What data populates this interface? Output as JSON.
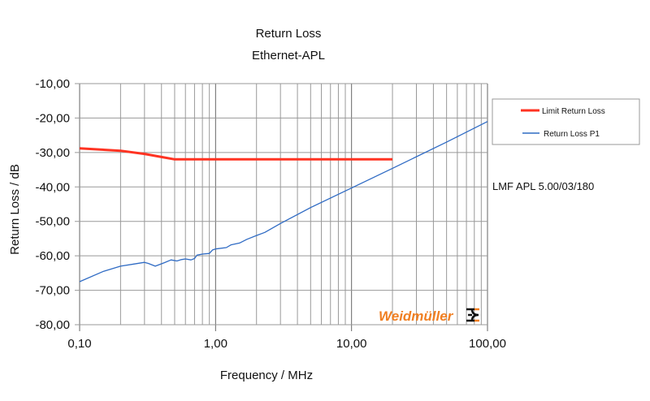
{
  "chart_data": {
    "type": "line",
    "title": "Return Loss",
    "subtitle": "Ethernet-APL",
    "xlabel": "Frequency / MHz",
    "ylabel": "Return Loss / dB",
    "xscale": "log",
    "xlim": [
      0.1,
      100
    ],
    "ylim": [
      -80,
      -10
    ],
    "x_ticks": [
      {
        "v": 0.1,
        "label": "0,10"
      },
      {
        "v": 1,
        "label": "1,00"
      },
      {
        "v": 10,
        "label": "10,00"
      },
      {
        "v": 100,
        "label": "100,00"
      }
    ],
    "y_ticks": [
      {
        "v": -10,
        "label": "-10,00"
      },
      {
        "v": -20,
        "label": "-20,00"
      },
      {
        "v": -30,
        "label": "-30,00"
      },
      {
        "v": -40,
        "label": "-40,00"
      },
      {
        "v": -50,
        "label": "-50,00"
      },
      {
        "v": -60,
        "label": "-60,00"
      },
      {
        "v": -70,
        "label": "-70,00"
      },
      {
        "v": -80,
        "label": "-80,00"
      }
    ],
    "grid": true,
    "legend_position": "right",
    "series": [
      {
        "name": "Limit Return Loss",
        "color": "#ff3322",
        "x": [
          0.1,
          0.2,
          0.3,
          0.4,
          0.5,
          0.55,
          20
        ],
        "y": [
          -28.8,
          -29.5,
          -30.4,
          -31.3,
          -32,
          -32,
          -32
        ]
      },
      {
        "name": "Return Loss P1",
        "color": "#2f6bc4",
        "x": [
          0.1,
          0.15,
          0.2,
          0.25,
          0.3,
          0.32,
          0.36,
          0.42,
          0.47,
          0.52,
          0.56,
          0.6,
          0.66,
          0.7,
          0.73,
          0.8,
          0.9,
          0.95,
          1.0,
          1.2,
          1.3,
          1.5,
          1.7,
          2,
          2.3,
          3,
          5,
          10,
          20,
          50,
          100
        ],
        "y": [
          -67.5,
          -64.5,
          -63,
          -62.4,
          -61.9,
          -62.2,
          -63,
          -62,
          -61.2,
          -61.5,
          -61.1,
          -60.9,
          -61.2,
          -60.8,
          -59.8,
          -59.5,
          -59.3,
          -58.3,
          -58,
          -57.6,
          -56.8,
          -56.3,
          -55.2,
          -54.1,
          -53.2,
          -50.6,
          -46,
          -40.3,
          -34.6,
          -27,
          -21
        ]
      }
    ],
    "annotations": [
      "LMF APL 5.00/03/180"
    ]
  },
  "logo": "Weidmüller"
}
